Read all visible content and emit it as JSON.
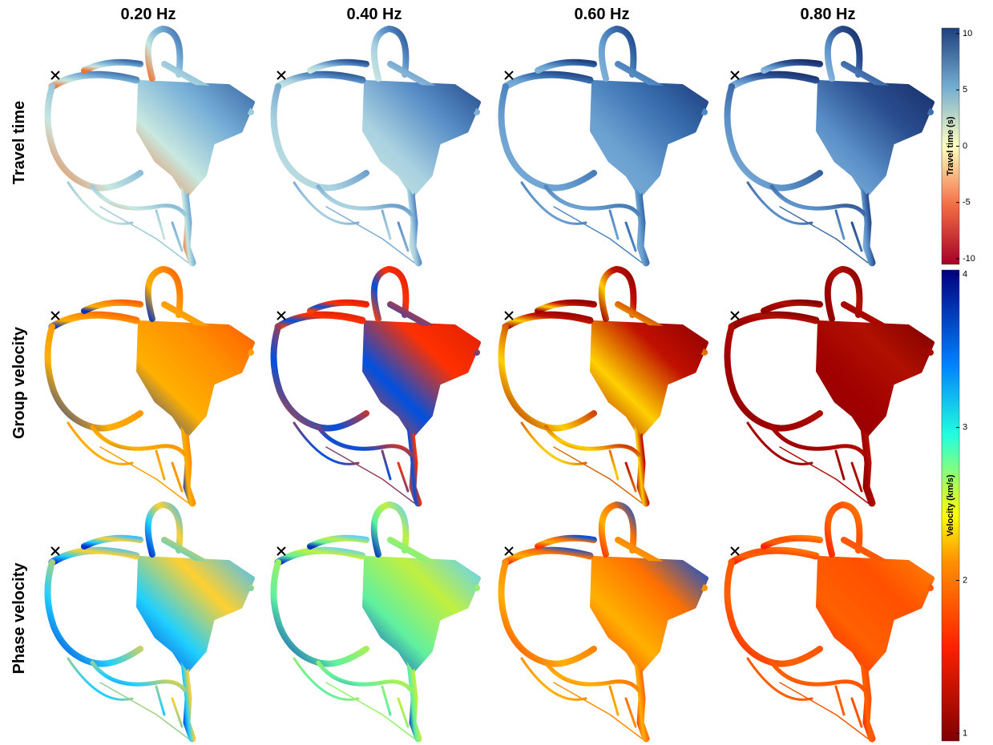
{
  "columns": [
    "0.20 Hz",
    "0.40 Hz",
    "0.60 Hz",
    "0.80 Hz"
  ],
  "rows": [
    "Travel time",
    "Group velocity",
    "Phase velocity"
  ],
  "colorbars": [
    {
      "label": "Travel time (s)",
      "lim": [
        -10.5,
        10.5
      ],
      "ticks": [
        10,
        5,
        0,
        -5,
        -10
      ]
    },
    {
      "label": "Velocity (km/s)",
      "lim": [
        0.95,
        4.03
      ],
      "ticks": [
        4,
        3,
        2,
        1
      ]
    }
  ]
}
